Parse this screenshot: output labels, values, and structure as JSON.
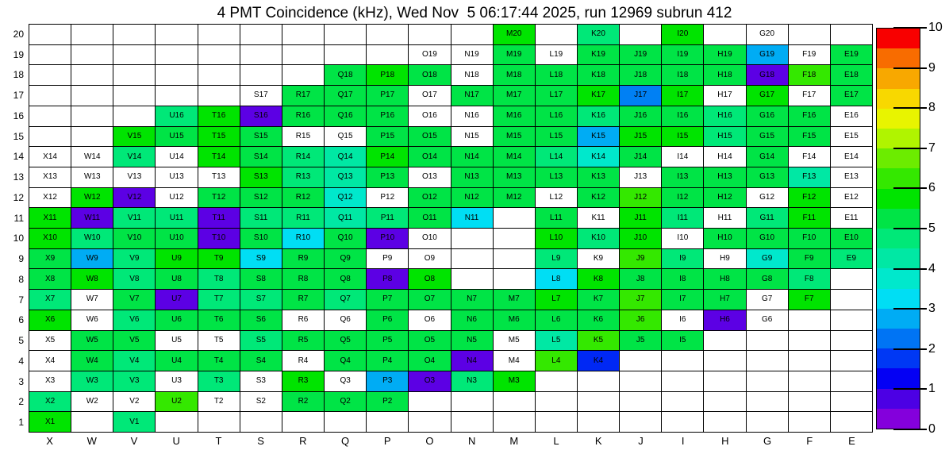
{
  "title": "4 PMT Coincidence (kHz), Wed Nov  5 06:17:44 2025, run 12969 subrun 412",
  "chart_data": {
    "type": "heatmap",
    "title": "4 PMT Coincidence (kHz), Wed Nov  5 06:17:44 2025, run 12969 subrun 412",
    "run": "12969",
    "subrun": "412",
    "timestamp": "Wed Nov  5 06:17:44 2025",
    "units": "kHz",
    "columns": [
      "X",
      "W",
      "V",
      "U",
      "T",
      "S",
      "R",
      "Q",
      "P",
      "O",
      "N",
      "M",
      "L",
      "K",
      "J",
      "I",
      "H",
      "G",
      "F",
      "E"
    ],
    "rows": [
      "20",
      "19",
      "18",
      "17",
      "16",
      "15",
      "14",
      "13",
      "12",
      "11",
      "10",
      "9",
      "8",
      "7",
      "6",
      "5",
      "4",
      "3",
      "2",
      "1"
    ],
    "legend_position": "right",
    "palette": {
      "w": "#ffffff",
      "g6": "#00e400",
      "g5": "#00e446",
      "g4": "#00e878",
      "t4": "#00e8a4",
      "t3": "#00e8cc",
      "cy": "#00def4",
      "lb": "#00acf4",
      "bl": "#0080f4",
      "db": "#0028f4",
      "pu": "#5c00e4",
      "lm": "#34e800"
    },
    "colorbar": {
      "min": 0,
      "max": 10,
      "tick_labels_top_to_bottom": [
        "10",
        "9",
        "8",
        "7",
        "6",
        "5",
        "4",
        "3",
        "2",
        "1",
        "0"
      ],
      "bands_bottom_to_top": [
        "#8400dc",
        "#4c00e4",
        "#0400f4",
        "#0038f4",
        "#0074f4",
        "#00acf4",
        "#00def4",
        "#00e8cc",
        "#00e8a4",
        "#00e878",
        "#00e446",
        "#00e400",
        "#34e800",
        "#6cec00",
        "#b0f400",
        "#e8f400",
        "#f8d800",
        "#f8a800",
        "#f86c00",
        "#f80000"
      ]
    },
    "cells": [
      [
        null,
        null,
        null,
        null,
        null,
        null,
        null,
        null,
        null,
        null,
        null,
        [
          "M20",
          "g6"
        ],
        null,
        [
          "K20",
          "g4"
        ],
        null,
        [
          "I20",
          "g6"
        ],
        null,
        [
          "G20",
          "w"
        ],
        null,
        null
      ],
      [
        null,
        null,
        null,
        null,
        null,
        null,
        null,
        null,
        null,
        [
          "O19",
          "w"
        ],
        [
          "N19",
          "w"
        ],
        [
          "M19",
          "g5"
        ],
        [
          "L19",
          "w"
        ],
        [
          "K19",
          "g5"
        ],
        [
          "J19",
          "g5"
        ],
        [
          "I19",
          "g5"
        ],
        [
          "H19",
          "g5"
        ],
        [
          "G19",
          "lb"
        ],
        [
          "F19",
          "w"
        ],
        [
          "E19",
          "g5"
        ]
      ],
      [
        null,
        null,
        null,
        null,
        null,
        null,
        null,
        [
          "Q18",
          "g5"
        ],
        [
          "P18",
          "g6"
        ],
        [
          "O18",
          "g5"
        ],
        [
          "N18",
          "w"
        ],
        [
          "M18",
          "g5"
        ],
        [
          "L18",
          "g5"
        ],
        [
          "K18",
          "g5"
        ],
        [
          "J18",
          "g5"
        ],
        [
          "I18",
          "g5"
        ],
        [
          "H18",
          "g5"
        ],
        [
          "G18",
          "pu"
        ],
        [
          "F18",
          "lm"
        ],
        [
          "E18",
          "g5"
        ]
      ],
      [
        null,
        null,
        null,
        null,
        null,
        [
          "S17",
          "w"
        ],
        [
          "R17",
          "g5"
        ],
        [
          "Q17",
          "g5"
        ],
        [
          "P17",
          "g5"
        ],
        [
          "O17",
          "w"
        ],
        [
          "N17",
          "g5"
        ],
        [
          "M17",
          "g5"
        ],
        [
          "L17",
          "g5"
        ],
        [
          "K17",
          "g6"
        ],
        [
          "J17",
          "bl"
        ],
        [
          "I17",
          "g6"
        ],
        [
          "H17",
          "w"
        ],
        [
          "G17",
          "g6"
        ],
        [
          "F17",
          "w"
        ],
        [
          "E17",
          "g5"
        ]
      ],
      [
        null,
        null,
        null,
        [
          "U16",
          "g4"
        ],
        [
          "T16",
          "g6"
        ],
        [
          "S16",
          "pu"
        ],
        [
          "R16",
          "g5"
        ],
        [
          "Q16",
          "g5"
        ],
        [
          "P16",
          "g5"
        ],
        [
          "O16",
          "w"
        ],
        [
          "N16",
          "w"
        ],
        [
          "M16",
          "g5"
        ],
        [
          "L16",
          "g5"
        ],
        [
          "K16",
          "g4"
        ],
        [
          "J16",
          "g5"
        ],
        [
          "I16",
          "g5"
        ],
        [
          "H16",
          "g4"
        ],
        [
          "G16",
          "g5"
        ],
        [
          "F16",
          "g5"
        ],
        [
          "E16",
          "w"
        ]
      ],
      [
        null,
        null,
        [
          "V15",
          "g6"
        ],
        [
          "U15",
          "g5"
        ],
        [
          "T15",
          "g6"
        ],
        [
          "S15",
          "g5"
        ],
        [
          "R15",
          "w"
        ],
        [
          "Q15",
          "w"
        ],
        [
          "P15",
          "g5"
        ],
        [
          "O15",
          "g5"
        ],
        [
          "N15",
          "w"
        ],
        [
          "M15",
          "g5"
        ],
        [
          "L15",
          "g5"
        ],
        [
          "K15",
          "lb"
        ],
        [
          "J15",
          "g6"
        ],
        [
          "I15",
          "g6"
        ],
        [
          "H15",
          "g4"
        ],
        [
          "G15",
          "g5"
        ],
        [
          "F15",
          "g5"
        ],
        [
          "E15",
          "w"
        ]
      ],
      [
        [
          "X14",
          "w"
        ],
        [
          "W14",
          "w"
        ],
        [
          "V14",
          "g4"
        ],
        [
          "U14",
          "w"
        ],
        [
          "T14",
          "g6"
        ],
        [
          "S14",
          "g5"
        ],
        [
          "R14",
          "g4"
        ],
        [
          "Q14",
          "t4"
        ],
        [
          "P14",
          "g6"
        ],
        [
          "O14",
          "g5"
        ],
        [
          "N14",
          "g5"
        ],
        [
          "M14",
          "g5"
        ],
        [
          "L14",
          "g4"
        ],
        [
          "K14",
          "t3"
        ],
        [
          "J14",
          "g5"
        ],
        [
          "I14",
          "w"
        ],
        [
          "H14",
          "w"
        ],
        [
          "G14",
          "g5"
        ],
        [
          "F14",
          "w"
        ],
        [
          "E14",
          "w"
        ]
      ],
      [
        [
          "X13",
          "w"
        ],
        [
          "W13",
          "w"
        ],
        [
          "V13",
          "w"
        ],
        [
          "U13",
          "w"
        ],
        [
          "T13",
          "w"
        ],
        [
          "S13",
          "g6"
        ],
        [
          "R13",
          "g4"
        ],
        [
          "Q13",
          "t4"
        ],
        [
          "P13",
          "g5"
        ],
        [
          "O13",
          "w"
        ],
        [
          "N13",
          "g5"
        ],
        [
          "M13",
          "g5"
        ],
        [
          "L13",
          "g5"
        ],
        [
          "K13",
          "g5"
        ],
        [
          "J13",
          "w"
        ],
        [
          "I13",
          "g5"
        ],
        [
          "H13",
          "g5"
        ],
        [
          "G13",
          "g5"
        ],
        [
          "F13",
          "t4"
        ],
        [
          "E13",
          "w"
        ]
      ],
      [
        [
          "X12",
          "w"
        ],
        [
          "W12",
          "g6"
        ],
        [
          "V12",
          "pu"
        ],
        [
          "U12",
          "w"
        ],
        [
          "T12",
          "g5"
        ],
        [
          "S12",
          "g5"
        ],
        [
          "R12",
          "g5"
        ],
        [
          "Q12",
          "t3"
        ],
        [
          "P12",
          "w"
        ],
        [
          "O12",
          "g5"
        ],
        [
          "N12",
          "g5"
        ],
        [
          "M12",
          "g5"
        ],
        [
          "L12",
          "w"
        ],
        [
          "K12",
          "g5"
        ],
        [
          "J12",
          "lm"
        ],
        [
          "I12",
          "g5"
        ],
        [
          "H12",
          "g5"
        ],
        [
          "G12",
          "w"
        ],
        [
          "F12",
          "g6"
        ],
        [
          "E12",
          "w"
        ]
      ],
      [
        [
          "X11",
          "g6"
        ],
        [
          "W11",
          "pu"
        ],
        [
          "V11",
          "g4"
        ],
        [
          "U11",
          "g4"
        ],
        [
          "T11",
          "pu"
        ],
        [
          "S11",
          "g4"
        ],
        [
          "R11",
          "g4"
        ],
        [
          "Q11",
          "t4"
        ],
        [
          "P11",
          "g4"
        ],
        [
          "O11",
          "g5"
        ],
        [
          "N11",
          "cy"
        ],
        null,
        [
          "L11",
          "g5"
        ],
        [
          "K11",
          "w"
        ],
        [
          "J11",
          "g6"
        ],
        [
          "I11",
          "g4"
        ],
        [
          "H11",
          "w"
        ],
        [
          "G11",
          "g4"
        ],
        [
          "F11",
          "g6"
        ],
        [
          "E11",
          "w"
        ]
      ],
      [
        [
          "X10",
          "g6"
        ],
        [
          "W10",
          "g4"
        ],
        [
          "V10",
          "g5"
        ],
        [
          "U10",
          "g5"
        ],
        [
          "T10",
          "pu"
        ],
        [
          "S10",
          "g5"
        ],
        [
          "R10",
          "cy"
        ],
        [
          "Q10",
          "g5"
        ],
        [
          "P10",
          "pu"
        ],
        [
          "O10",
          "w"
        ],
        null,
        null,
        [
          "L10",
          "g6"
        ],
        [
          "K10",
          "g4"
        ],
        [
          "J10",
          "g6"
        ],
        [
          "I10",
          "w"
        ],
        [
          "H10",
          "g5"
        ],
        [
          "G10",
          "g5"
        ],
        [
          "F10",
          "g5"
        ],
        [
          "E10",
          "g5"
        ]
      ],
      [
        [
          "X9",
          "g5"
        ],
        [
          "W9",
          "lb"
        ],
        [
          "V9",
          "g4"
        ],
        [
          "U9",
          "g6"
        ],
        [
          "T9",
          "g6"
        ],
        [
          "S9",
          "cy"
        ],
        [
          "R9",
          "g5"
        ],
        [
          "Q9",
          "g5"
        ],
        [
          "P9",
          "w"
        ],
        [
          "O9",
          "w"
        ],
        null,
        null,
        [
          "L9",
          "g4"
        ],
        [
          "K9",
          "w"
        ],
        [
          "J9",
          "lm"
        ],
        [
          "I9",
          "g4"
        ],
        [
          "H9",
          "w"
        ],
        [
          "G9",
          "t3"
        ],
        [
          "F9",
          "g5"
        ],
        [
          "E9",
          "g4"
        ]
      ],
      [
        [
          "X8",
          "g5"
        ],
        [
          "W8",
          "g6"
        ],
        [
          "V8",
          "g4"
        ],
        [
          "U8",
          "g5"
        ],
        [
          "T8",
          "g4"
        ],
        [
          "S8",
          "g5"
        ],
        [
          "R8",
          "g5"
        ],
        [
          "Q8",
          "g5"
        ],
        [
          "P8",
          "pu"
        ],
        [
          "O8",
          "g6"
        ],
        null,
        null,
        [
          "L8",
          "cy"
        ],
        [
          "K8",
          "g6"
        ],
        [
          "J8",
          "g5"
        ],
        [
          "I8",
          "g5"
        ],
        [
          "H8",
          "g5"
        ],
        [
          "G8",
          "g5"
        ],
        [
          "F8",
          "g4"
        ],
        null
      ],
      [
        [
          "X7",
          "g4"
        ],
        [
          "W7",
          "w"
        ],
        [
          "V7",
          "g5"
        ],
        [
          "U7",
          "pu"
        ],
        [
          "T7",
          "g4"
        ],
        [
          "S7",
          "g4"
        ],
        [
          "R7",
          "g5"
        ],
        [
          "Q7",
          "g4"
        ],
        [
          "P7",
          "g5"
        ],
        [
          "O7",
          "g5"
        ],
        [
          "N7",
          "g5"
        ],
        [
          "M7",
          "g5"
        ],
        [
          "L7",
          "g6"
        ],
        [
          "K7",
          "g5"
        ],
        [
          "J7",
          "lm"
        ],
        [
          "I7",
          "g5"
        ],
        [
          "H7",
          "g5"
        ],
        [
          "G7",
          "w"
        ],
        [
          "F7",
          "g6"
        ],
        null
      ],
      [
        [
          "X6",
          "g6"
        ],
        [
          "W6",
          "w"
        ],
        [
          "V6",
          "g4"
        ],
        [
          "U6",
          "g5"
        ],
        [
          "T6",
          "g5"
        ],
        [
          "S6",
          "g5"
        ],
        [
          "R6",
          "w"
        ],
        [
          "Q6",
          "w"
        ],
        [
          "P6",
          "g5"
        ],
        [
          "O6",
          "w"
        ],
        [
          "N6",
          "g5"
        ],
        [
          "M6",
          "g5"
        ],
        [
          "L6",
          "g5"
        ],
        [
          "K6",
          "g5"
        ],
        [
          "J6",
          "lm"
        ],
        [
          "I6",
          "w"
        ],
        [
          "H6",
          "pu"
        ],
        [
          "G6",
          "w"
        ],
        null,
        null
      ],
      [
        [
          "X5",
          "w"
        ],
        [
          "W5",
          "g5"
        ],
        [
          "V5",
          "g5"
        ],
        [
          "U5",
          "w"
        ],
        [
          "T5",
          "w"
        ],
        [
          "S5",
          "g4"
        ],
        [
          "R5",
          "g5"
        ],
        [
          "Q5",
          "g5"
        ],
        [
          "P5",
          "g5"
        ],
        [
          "O5",
          "g5"
        ],
        [
          "N5",
          "g5"
        ],
        [
          "M5",
          "w"
        ],
        [
          "L5",
          "t4"
        ],
        [
          "K5",
          "lm"
        ],
        [
          "J5",
          "g5"
        ],
        [
          "I5",
          "g5"
        ],
        null,
        null,
        null,
        null
      ],
      [
        [
          "X4",
          "w"
        ],
        [
          "W4",
          "g5"
        ],
        [
          "V4",
          "g4"
        ],
        [
          "U4",
          "g5"
        ],
        [
          "T4",
          "g5"
        ],
        [
          "S4",
          "g5"
        ],
        [
          "R4",
          "w"
        ],
        [
          "Q4",
          "g5"
        ],
        [
          "P4",
          "g5"
        ],
        [
          "O4",
          "g5"
        ],
        [
          "N4",
          "pu"
        ],
        [
          "M4",
          "w"
        ],
        [
          "L4",
          "lm"
        ],
        [
          "K4",
          "db"
        ],
        null,
        null,
        null,
        null,
        null,
        null
      ],
      [
        [
          "X3",
          "w"
        ],
        [
          "W3",
          "g4"
        ],
        [
          "V3",
          "g4"
        ],
        [
          "U3",
          "w"
        ],
        [
          "T3",
          "g4"
        ],
        [
          "S3",
          "w"
        ],
        [
          "R3",
          "g6"
        ],
        [
          "Q3",
          "w"
        ],
        [
          "P3",
          "lb"
        ],
        [
          "O3",
          "pu"
        ],
        [
          "N3",
          "g4"
        ],
        [
          "M3",
          "g6"
        ],
        null,
        null,
        null,
        null,
        null,
        null,
        null,
        null
      ],
      [
        [
          "X2",
          "g4"
        ],
        [
          "W2",
          "w"
        ],
        [
          "V2",
          "w"
        ],
        [
          "U2",
          "lm"
        ],
        [
          "T2",
          "w"
        ],
        [
          "S2",
          "w"
        ],
        [
          "R2",
          "g5"
        ],
        [
          "Q2",
          "g5"
        ],
        [
          "P2",
          "g5"
        ],
        null,
        null,
        null,
        null,
        null,
        null,
        null,
        null,
        null,
        null,
        null
      ],
      [
        [
          "X1",
          "g6"
        ],
        null,
        [
          "V1",
          "g4"
        ],
        null,
        null,
        null,
        null,
        null,
        null,
        null,
        null,
        null,
        null,
        null,
        null,
        null,
        null,
        null,
        null,
        null
      ]
    ]
  }
}
